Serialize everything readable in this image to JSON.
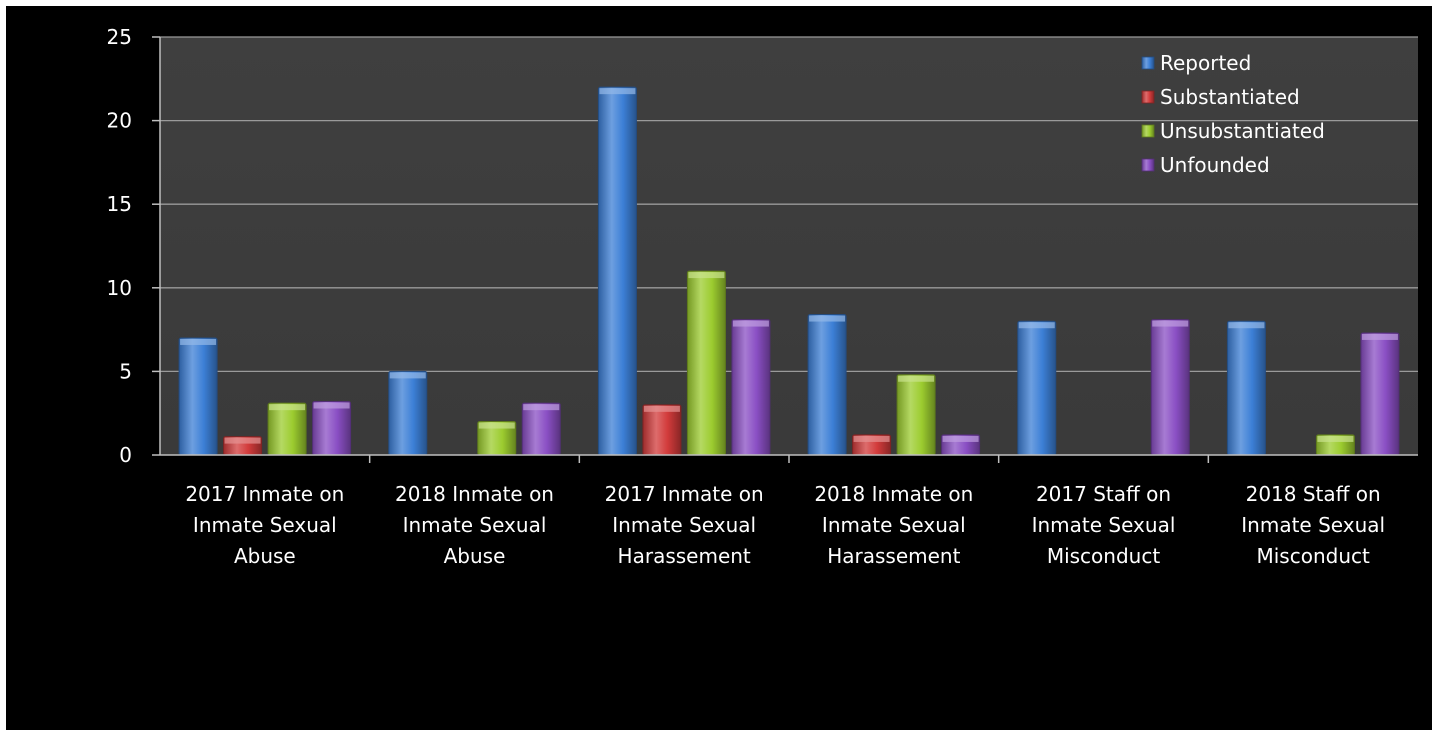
{
  "chart_data": {
    "type": "bar",
    "title": "",
    "xlabel": "",
    "ylabel": "",
    "ylim": [
      0,
      25
    ],
    "yticks": [
      "0",
      "5",
      "10",
      "15",
      "20",
      "25"
    ],
    "grid": true,
    "legend_position": "top-right",
    "categories": [
      [
        "2017 Inmate on",
        "Inmate Sexual",
        "Abuse"
      ],
      [
        "2018 Inmate on",
        "Inmate Sexual",
        "Abuse"
      ],
      [
        "2017 Inmate on",
        "Inmate Sexual",
        "Harassement"
      ],
      [
        "2018 Inmate on",
        "Inmate Sexual",
        "Harassement"
      ],
      [
        "2017 Staff on",
        "Inmate Sexual",
        "Misconduct"
      ],
      [
        "2018 Staff on",
        "Inmate Sexual",
        "Misconduct"
      ]
    ],
    "series": [
      {
        "name": "Reported",
        "color": "#3c7fd6",
        "values": [
          7,
          5,
          22,
          8.4,
          8,
          8
        ]
      },
      {
        "name": "Substantiated",
        "color": "#d23b3b",
        "values": [
          1.1,
          0,
          3,
          1.2,
          0,
          0
        ]
      },
      {
        "name": "Unsubstantiated",
        "color": "#9ccc2f",
        "values": [
          3.1,
          2,
          11,
          4.8,
          0,
          1.2
        ]
      },
      {
        "name": "Unfounded",
        "color": "#8a4fc4",
        "values": [
          3.2,
          3.1,
          8.1,
          1.2,
          8.1,
          7.3
        ]
      }
    ]
  }
}
